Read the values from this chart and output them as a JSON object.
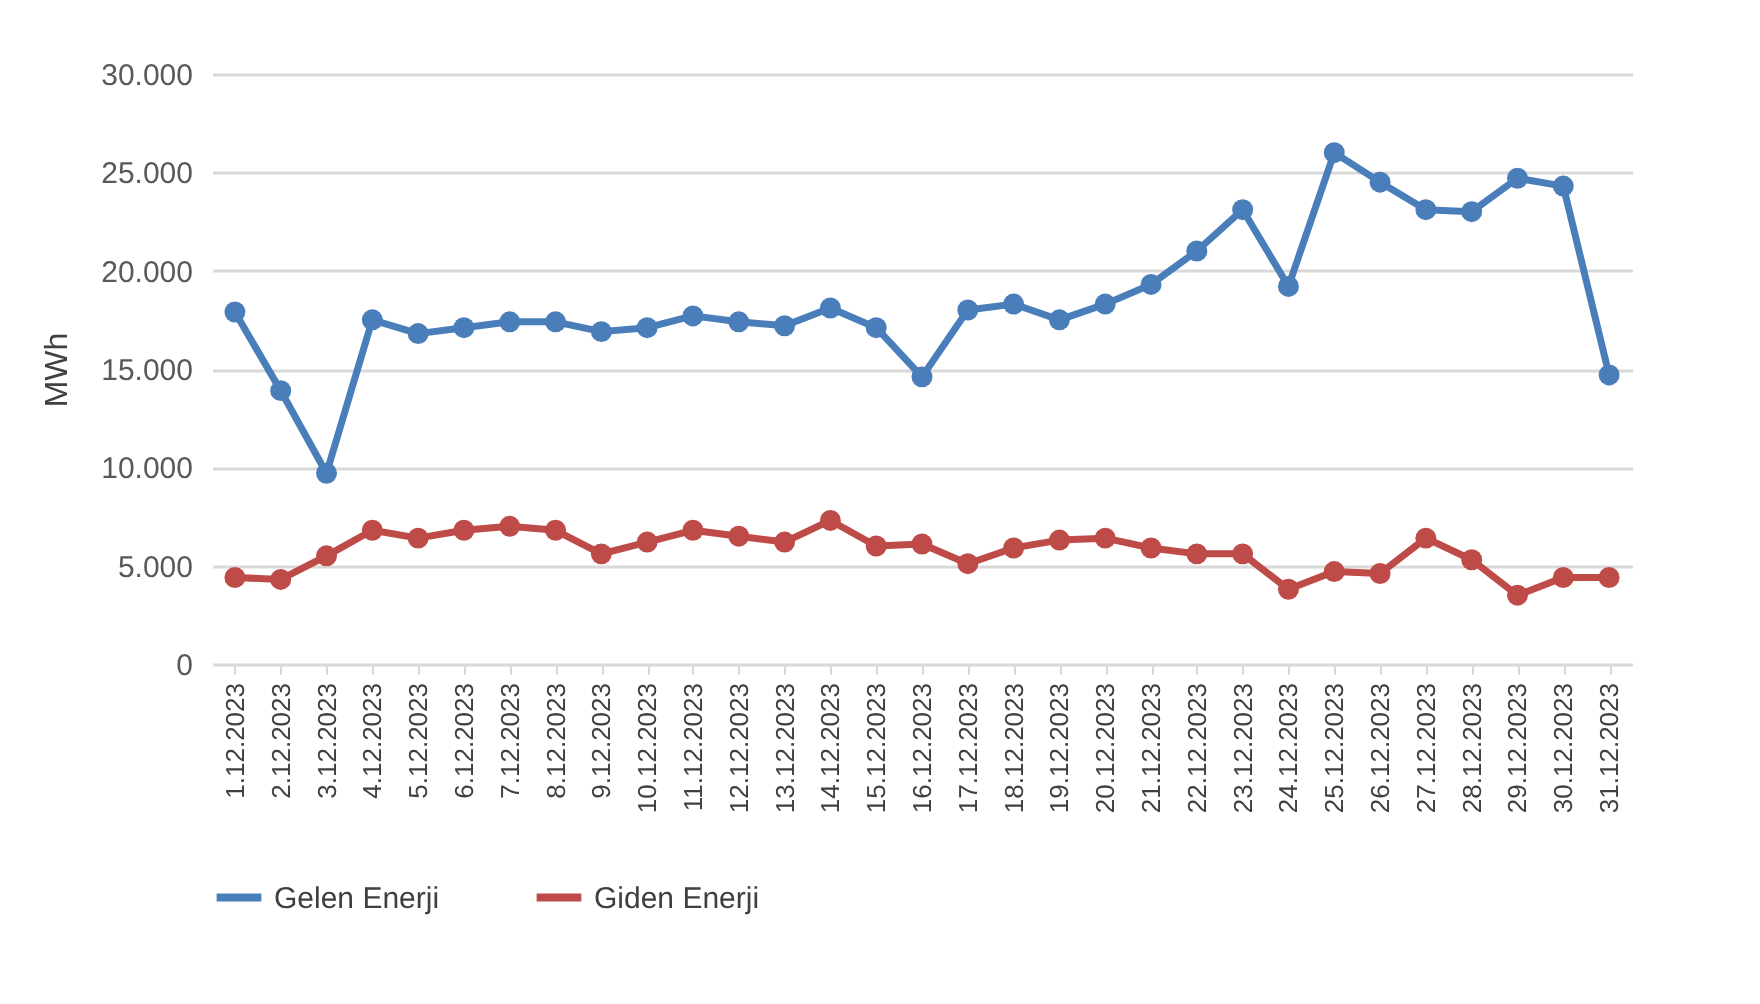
{
  "chart_data": {
    "type": "line",
    "ylabel": "MWh",
    "categories": [
      "1.12.2023",
      "2.12.2023",
      "3.12.2023",
      "4.12.2023",
      "5.12.2023",
      "6.12.2023",
      "7.12.2023",
      "8.12.2023",
      "9.12.2023",
      "10.12.2023",
      "11.12.2023",
      "12.12.2023",
      "13.12.2023",
      "14.12.2023",
      "15.12.2023",
      "16.12.2023",
      "17.12.2023",
      "18.12.2023",
      "19.12.2023",
      "20.12.2023",
      "21.12.2023",
      "22.12.2023",
      "23.12.2023",
      "24.12.2023",
      "25.12.2023",
      "26.12.2023",
      "27.12.2023",
      "28.12.2023",
      "29.12.2023",
      "30.12.2023",
      "31.12.2023"
    ],
    "series": [
      {
        "name": "Gelen Enerji",
        "color": "#4a7ebb",
        "values": [
          17900,
          13900,
          9700,
          17500,
          16800,
          17100,
          17400,
          17400,
          16900,
          17100,
          17700,
          17400,
          17200,
          18100,
          17100,
          14600,
          18000,
          18300,
          17500,
          18300,
          19300,
          21000,
          23100,
          19200,
          26000,
          24500,
          23100,
          23000,
          24700,
          24300,
          14700
        ]
      },
      {
        "name": "Giden Enerji",
        "color": "#be4b48",
        "values": [
          4400,
          4300,
          5500,
          6800,
          6400,
          6800,
          7000,
          6800,
          5600,
          6200,
          6800,
          6500,
          6200,
          7300,
          6000,
          6100,
          5100,
          5900,
          6300,
          6400,
          5900,
          5600,
          5600,
          3800,
          4700,
          4600,
          6400,
          5300,
          3500,
          4400,
          4400
        ]
      }
    ],
    "ylim": [
      0,
      30000
    ],
    "yticks": [
      0,
      {
        "value": 5000,
        "label": "5.000"
      },
      {
        "value": 10000,
        "label": "10.000"
      },
      {
        "value": 15000,
        "label": "15.000"
      },
      {
        "value": 20000,
        "label": "20.000"
      },
      {
        "value": 25000,
        "label": "25.000"
      },
      {
        "value": 30000,
        "label": "30.000"
      }
    ],
    "grid": "y",
    "legend": "bottom",
    "marker": "circle",
    "line_style": "solid"
  }
}
